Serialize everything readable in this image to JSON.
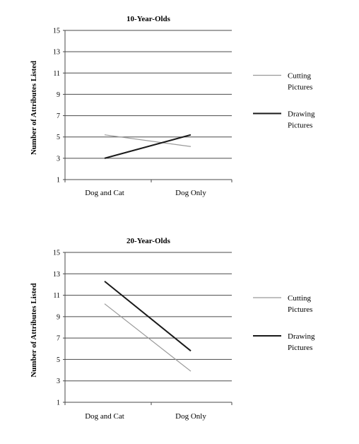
{
  "chart_data": [
    {
      "type": "line",
      "title": "10-Year-Olds",
      "ylabel": "Number of Attributes Listed",
      "xlabel": "",
      "categories": [
        "Dog and Cat",
        "Dog Only"
      ],
      "ylim": [
        1,
        15
      ],
      "yticks": [
        1,
        3,
        5,
        7,
        9,
        11,
        13,
        15
      ],
      "grid": true,
      "legend_position": "right",
      "series": [
        {
          "name_lines": [
            "Cutting",
            "Pictures"
          ],
          "color": "#999999",
          "values": [
            5.2,
            4.1
          ]
        },
        {
          "name_lines": [
            "Drawing",
            "Pictures"
          ],
          "color": "#1a1a1a",
          "values": [
            3.0,
            5.2
          ]
        }
      ]
    },
    {
      "type": "line",
      "title": "20-Year-Olds",
      "ylabel": "Number of Attributes Listed",
      "xlabel": "",
      "categories": [
        "Dog and Cat",
        "Dog Only"
      ],
      "ylim": [
        1,
        15
      ],
      "yticks": [
        1,
        3,
        5,
        7,
        9,
        11,
        13,
        15
      ],
      "grid": true,
      "legend_position": "right",
      "series": [
        {
          "name_lines": [
            "Cutting",
            "Pictures"
          ],
          "color": "#999999",
          "values": [
            10.2,
            3.9
          ]
        },
        {
          "name_lines": [
            "Drawing",
            "Pictures"
          ],
          "color": "#1a1a1a",
          "values": [
            12.3,
            5.8
          ]
        }
      ]
    }
  ]
}
